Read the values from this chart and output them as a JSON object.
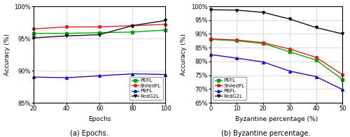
{
  "plot_a": {
    "x": [
      20,
      40,
      60,
      80,
      100
    ],
    "PEFL": [
      95.8,
      95.8,
      95.9,
      96.0,
      96.3
    ],
    "ShiledFL": [
      96.5,
      96.8,
      96.8,
      97.0,
      97.2
    ],
    "PBFL": [
      89.0,
      88.9,
      89.2,
      89.5,
      89.4
    ],
    "FedG2L": [
      95.1,
      95.4,
      95.6,
      97.0,
      97.8
    ],
    "xlabel": "Epochs",
    "ylabel": "Accuracy (%)",
    "xlim": [
      20,
      100
    ],
    "ylim": [
      85,
      100
    ],
    "yticks": [
      85,
      90,
      95,
      100
    ],
    "xticks": [
      20,
      40,
      60,
      80,
      100
    ],
    "caption": "(a) Epochs."
  },
  "plot_b": {
    "x": [
      0,
      10,
      20,
      30,
      40,
      50
    ],
    "PEFL": [
      88.0,
      87.5,
      86.5,
      83.5,
      80.5,
      73.5
    ],
    "ShiledFL": [
      88.2,
      87.8,
      86.8,
      84.5,
      81.5,
      75.2
    ],
    "PBFL": [
      82.5,
      81.2,
      79.8,
      76.5,
      74.5,
      69.8
    ],
    "FedG2L": [
      98.8,
      98.6,
      97.8,
      95.4,
      92.3,
      90.0
    ],
    "xlabel": "Byzantine percentage (%)",
    "ylabel": "Accuracy (%)",
    "xlim": [
      0,
      50
    ],
    "ylim": [
      65,
      100
    ],
    "yticks": [
      65,
      70,
      75,
      80,
      85,
      90,
      95,
      100
    ],
    "xticks": [
      0,
      10,
      20,
      30,
      40,
      50
    ],
    "caption": "(b) Byzantine percentage."
  },
  "colors": {
    "PEFL": "#00aa00",
    "ShiledFL": "#dd2222",
    "PBFL": "#1111cc",
    "FedG2L": "#111111"
  },
  "markers": {
    "PEFL": "s",
    "ShiledFL": "o",
    "PBFL": "^",
    "FedG2L": "v"
  },
  "figsize": [
    5.0,
    1.96
  ],
  "dpi": 100
}
